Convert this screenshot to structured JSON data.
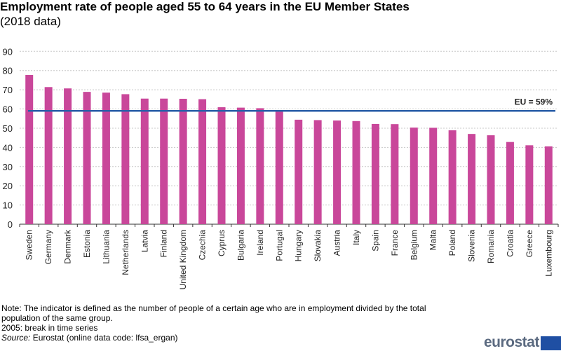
{
  "chart_data": {
    "type": "bar",
    "title": "Employment rate of people aged 55 to 64 years in the EU Member States",
    "subtitle": "(2018 data)",
    "categories": [
      "Sweden",
      "Germany",
      "Denmark",
      "Estonia",
      "Lithuania",
      "Netherlands",
      "Latvia",
      "Finland",
      "United Kingdom",
      "Czechia",
      "Cyprus",
      "Bulgaria",
      "Ireland",
      "Portugal",
      "Hungary",
      "Slovakia",
      "Austria",
      "Italy",
      "Spain",
      "France",
      "Belgium",
      "Malta",
      "Poland",
      "Slovenia",
      "Romania",
      "Croatia",
      "Greece",
      "Luxembourg"
    ],
    "values": [
      77.7,
      71.4,
      70.7,
      68.9,
      68.5,
      67.7,
      65.4,
      65.4,
      65.3,
      65.1,
      60.9,
      60.7,
      60.4,
      59.2,
      54.4,
      54.2,
      54.0,
      53.7,
      52.2,
      52.1,
      50.3,
      50.2,
      48.9,
      47.0,
      46.3,
      42.8,
      41.1,
      40.5
    ],
    "ylim": [
      0,
      90
    ],
    "yticks": [
      0,
      10,
      20,
      30,
      40,
      50,
      60,
      70,
      80,
      90
    ],
    "grid": true,
    "reference_line": {
      "value": 59,
      "label": "EU = 59%"
    },
    "bar_color": "#c9479a",
    "line_color": "#2a5ea8"
  },
  "notes": {
    "note_line1": "Note: The indicator is defined as the number of people of a certain age who are in employment divided by the total",
    "note_line2": "population of the same group.",
    "break": "2005: break in time series",
    "source_label": "Source:",
    "source_text": " Eurostat (online data code: lfsa_ergan)"
  },
  "logo": {
    "text": "eurostat"
  }
}
